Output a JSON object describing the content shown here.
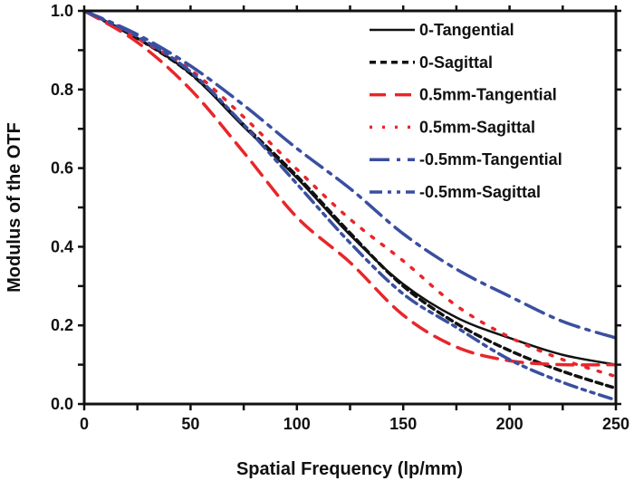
{
  "chart_data": {
    "type": "line",
    "xlabel": "Spatial Frequency (lp/mm)",
    "ylabel": "Modulus of the OTF",
    "xlim": [
      0,
      250
    ],
    "ylim": [
      0.0,
      1.0
    ],
    "xticks": [
      "0",
      "50",
      "100",
      "150",
      "200",
      "250"
    ],
    "yticks": [
      "0.0",
      "0.2",
      "0.4",
      "0.6",
      "0.8",
      "1.0"
    ],
    "grid": false,
    "legend_position": "top-right",
    "x": [
      0,
      25,
      50,
      75,
      100,
      125,
      150,
      175,
      200,
      225,
      250
    ],
    "series": [
      {
        "name": "0-Tangential",
        "color": "#111111",
        "style": "solid",
        "values": [
          1.0,
          0.93,
          0.84,
          0.705,
          0.575,
          0.43,
          0.305,
          0.22,
          0.168,
          0.125,
          0.1
        ]
      },
      {
        "name": "0-Sagittal",
        "color": "#111111",
        "style": "dash",
        "values": [
          1.0,
          0.93,
          0.84,
          0.71,
          0.58,
          0.435,
          0.3,
          0.205,
          0.136,
          0.083,
          0.04
        ]
      },
      {
        "name": "0.5mm-Tangential",
        "color": "#e8262b",
        "style": "long-dash",
        "values": [
          1.0,
          0.92,
          0.8,
          0.64,
          0.475,
          0.36,
          0.226,
          0.145,
          0.11,
          0.1,
          0.1
        ]
      },
      {
        "name": "0.5mm-Sagittal",
        "color": "#e8262b",
        "style": "dot",
        "values": [
          1.0,
          0.93,
          0.85,
          0.73,
          0.597,
          0.47,
          0.364,
          0.25,
          0.17,
          0.113,
          0.07
        ]
      },
      {
        "name": "-0.5mm-Tangential",
        "color": "#3a4fa0",
        "style": "dash-dot",
        "values": [
          1.0,
          0.94,
          0.86,
          0.76,
          0.65,
          0.548,
          0.433,
          0.343,
          0.274,
          0.21,
          0.168
        ]
      },
      {
        "name": "-0.5mm-Sagittal",
        "color": "#3a4fa0",
        "style": "dash-dot-dot",
        "values": [
          1.0,
          0.935,
          0.845,
          0.71,
          0.56,
          0.41,
          0.28,
          0.195,
          0.113,
          0.055,
          0.01
        ]
      }
    ]
  }
}
